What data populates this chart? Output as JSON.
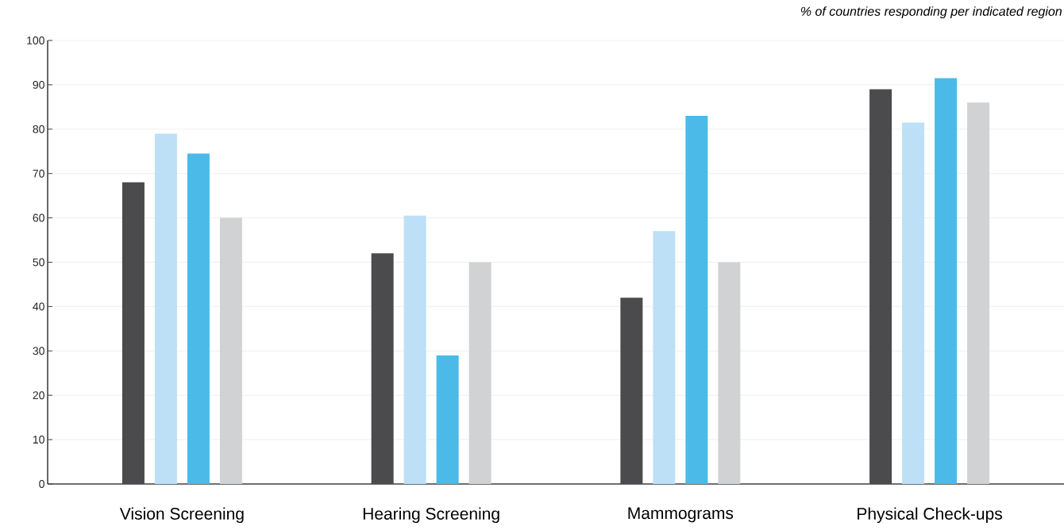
{
  "chart_data": {
    "type": "bar",
    "categories": [
      "Vision Screening",
      "Hearing Screening",
      "Mammograms",
      "Physical Check-ups"
    ],
    "series": [
      {
        "color": "#4b4b4d",
        "values": [
          68,
          52,
          42,
          89
        ]
      },
      {
        "color": "#bde0f7",
        "values": [
          79,
          60.5,
          57,
          81.5
        ]
      },
      {
        "color": "#4bbae9",
        "values": [
          74.5,
          29,
          83,
          91.5
        ]
      },
      {
        "color": "#d1d2d4",
        "values": [
          60,
          50,
          50,
          86
        ]
      }
    ],
    "ylim": [
      0,
      100
    ],
    "yticks": [
      0,
      10,
      20,
      30,
      40,
      50,
      60,
      70,
      80,
      90,
      100
    ],
    "grid": "y",
    "annotations": [
      "% of countries responding per indicated region"
    ]
  }
}
